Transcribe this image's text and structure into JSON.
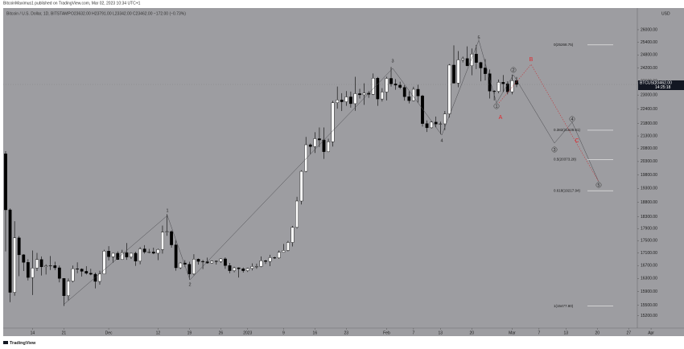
{
  "header": {
    "published": "BitcoinMaximus1 published on TradingView.com, Mar 02, 2023 10:34 UTC+1",
    "symbol": "Bitcoin / U.S. Dollar, 1D, BITSTAMP",
    "ohlc": "O23632.00 H23791.00 L23342.00 C23462.00 −172.00 (−0.73%)"
  },
  "chart_data": {
    "type": "candlestick",
    "currency": "USD",
    "open": [
      20600,
      18540,
      15880,
      17590,
      17040,
      16800,
      16330,
      16620,
      16890,
      16660,
      16690,
      16700,
      16630,
      16300,
      15780,
      16220,
      16600,
      16590,
      16520,
      16460,
      16430,
      16210,
      16440,
      17160,
      16980,
      17090,
      16890,
      17110,
      16970,
      17090,
      16840,
      17230,
      17130,
      17130,
      17090,
      17210,
      17780,
      17800,
      17360,
      16630,
      16780,
      16740,
      16440,
      16900,
      16830,
      16820,
      16780,
      16840,
      16830,
      16910,
      16700,
      16540,
      16630,
      16600,
      16540,
      16610,
      16670,
      16670,
      16850,
      16830,
      16950,
      16940,
      17120,
      17180,
      17440,
      17940,
      18850,
      19930,
      20950,
      20880,
      21190,
      21140,
      20680,
      21070,
      22670,
      22790,
      22710,
      22920,
      22630,
      23060,
      23010,
      23080,
      23030,
      23740,
      22830,
      23130,
      23730,
      23490,
      23430,
      23330,
      22930,
      22760,
      23250,
      22960,
      21800,
      21630,
      21860,
      21780,
      21790,
      22200,
      24330,
      23520,
      24570,
      24630,
      24300,
      24840,
      24450,
      24200,
      23940,
      23170,
      23160,
      23560,
      23490,
      23140,
      23632
    ],
    "high": [
      20700,
      18590,
      18150,
      17650,
      17060,
      16900,
      17180,
      17100,
      16990,
      16740,
      17000,
      16820,
      16700,
      16310,
      16300,
      16700,
      16800,
      16610,
      16680,
      16600,
      16480,
      16540,
      17200,
      17320,
      17100,
      17150,
      17200,
      17420,
      17100,
      17140,
      17290,
      17350,
      17230,
      17270,
      17240,
      18000,
      18390,
      17840,
      17530,
      16800,
      16870,
      16820,
      17060,
      16920,
      16880,
      16950,
      16860,
      16860,
      16930,
      16960,
      16780,
      16660,
      16640,
      16640,
      16630,
      16770,
      16760,
      16990,
      16880,
      17040,
      16980,
      17180,
      17390,
      17490,
      17990,
      19000,
      19970,
      21260,
      21000,
      21450,
      21640,
      21640,
      21190,
      22750,
      23370,
      23080,
      23170,
      23150,
      23800,
      23270,
      23510,
      23170,
      23950,
      23790,
      23300,
      23800,
      24240,
      23700,
      23580,
      23430,
      23160,
      23360,
      23450,
      23010,
      21930,
      21900,
      22090,
      21880,
      22320,
      24380,
      25250,
      24980,
      24720,
      25200,
      25100,
      25270,
      24480,
      24610,
      24130,
      23210,
      23680,
      23880,
      23600,
      23900,
      23791
    ],
    "low": [
      17150,
      15590,
      15780,
      16370,
      16530,
      16240,
      15800,
      16530,
      16390,
      16420,
      16560,
      16560,
      16180,
      15480,
      15640,
      16180,
      16460,
      16360,
      16420,
      16400,
      16000,
      16110,
      16440,
      16860,
      16790,
      16880,
      16880,
      16880,
      16910,
      16690,
      16740,
      17080,
      17090,
      17060,
      16870,
      17080,
      17660,
      17270,
      16540,
      16590,
      16660,
      16270,
      16400,
      16730,
      16590,
      16760,
      16760,
      16730,
      16780,
      16600,
      16460,
      16490,
      16330,
      16480,
      16500,
      16550,
      16600,
      16650,
      16750,
      16680,
      16910,
      16910,
      17110,
      17150,
      17310,
      17900,
      18730,
      19900,
      20580,
      20630,
      20860,
      20400,
      20660,
      20880,
      22420,
      22320,
      22540,
      22460,
      22330,
      22850,
      22580,
      22880,
      23000,
      22540,
      22720,
      22770,
      23370,
      23230,
      23260,
      22760,
      22640,
      22740,
      22680,
      21680,
      21460,
      21600,
      21640,
      21370,
      21530,
      22050,
      23500,
      23340,
      24450,
      24270,
      23870,
      24150,
      23600,
      23640,
      22850,
      22770,
      23080,
      23120,
      23030,
      23030,
      23342
    ],
    "close": [
      18540,
      15880,
      17590,
      17040,
      16800,
      16330,
      16620,
      16890,
      16660,
      16690,
      16700,
      16630,
      16300,
      15780,
      16220,
      16600,
      16590,
      16520,
      16460,
      16430,
      16210,
      16440,
      17160,
      16980,
      17090,
      16890,
      17110,
      16970,
      17090,
      16840,
      17230,
      17130,
      17130,
      17090,
      17210,
      17780,
      17800,
      17360,
      16630,
      16780,
      16740,
      16440,
      16900,
      16830,
      16820,
      16780,
      16840,
      16830,
      16910,
      16700,
      16540,
      16630,
      16600,
      16540,
      16610,
      16670,
      16670,
      16850,
      16830,
      16950,
      16940,
      17120,
      17180,
      17440,
      17940,
      18850,
      19930,
      20950,
      20880,
      21190,
      21140,
      20680,
      21070,
      22670,
      22790,
      22710,
      22920,
      22630,
      23060,
      23010,
      23080,
      23030,
      23740,
      22830,
      23130,
      23730,
      23490,
      23430,
      23330,
      22930,
      22760,
      23250,
      22960,
      21800,
      21630,
      21860,
      21780,
      21790,
      22200,
      24330,
      23520,
      24570,
      24630,
      24300,
      24840,
      24450,
      24200,
      23940,
      23170,
      23160,
      23560,
      23490,
      23140,
      23632,
      23462
    ],
    "ylim": [
      14850,
      27080
    ],
    "log_scale": true,
    "yticks": [
      {
        "value": 26000,
        "label": "26000.00"
      },
      {
        "value": 25400,
        "label": "25400.00"
      },
      {
        "value": 24800,
        "label": "24800.00"
      },
      {
        "value": 24200,
        "label": "24200.00"
      },
      {
        "value": 23600,
        "label": "23600.00"
      },
      {
        "value": 23000,
        "label": "23000.00"
      },
      {
        "value": 22400,
        "label": "22400.00"
      },
      {
        "value": 21800,
        "label": "21800.00"
      },
      {
        "value": 21300,
        "label": "21300.00"
      },
      {
        "value": 20800,
        "label": "20800.00"
      },
      {
        "value": 20300,
        "label": "20300.00"
      },
      {
        "value": 19800,
        "label": "19800.00"
      },
      {
        "value": 19300,
        "label": "19300.00"
      },
      {
        "value": 18800,
        "label": "18800.00"
      },
      {
        "value": 18300,
        "label": "18300.00"
      },
      {
        "value": 17900,
        "label": "17900.00"
      },
      {
        "value": 17500,
        "label": "17500.00"
      },
      {
        "value": 17100,
        "label": "17100.00"
      },
      {
        "value": 16700,
        "label": "16700.00"
      },
      {
        "value": 16300,
        "label": "16300.00"
      },
      {
        "value": 15900,
        "label": "15900.00"
      },
      {
        "value": 15500,
        "label": "15500.00"
      },
      {
        "value": 15200,
        "label": "15200.00"
      }
    ],
    "xticks": [
      {
        "value": 6,
        "label": "14"
      },
      {
        "value": 13,
        "label": "21"
      },
      {
        "value": 23,
        "label": "Dec"
      },
      {
        "value": 34,
        "label": "12"
      },
      {
        "value": 41,
        "label": "19"
      },
      {
        "value": 48,
        "label": "26"
      },
      {
        "value": 54,
        "label": "2023"
      },
      {
        "value": 62,
        "label": "9"
      },
      {
        "value": 69,
        "label": "16"
      },
      {
        "value": 76,
        "label": "23"
      },
      {
        "value": 85,
        "label": "Feb"
      },
      {
        "value": 91,
        "label": "7"
      },
      {
        "value": 97,
        "label": "13"
      },
      {
        "value": 104,
        "label": "20"
      },
      {
        "value": 113,
        "label": "Mar"
      },
      {
        "value": 119,
        "label": "7"
      },
      {
        "value": 125,
        "label": "13"
      },
      {
        "value": 132,
        "label": "20"
      },
      {
        "value": 139,
        "label": "27"
      },
      {
        "value": 144,
        "label": "Apr"
      }
    ],
    "up_color": "#ffffff",
    "down_color": "#000000",
    "price_tag": {
      "symbol": "BTCUSD",
      "price": "23462.00",
      "countdown": "14:25:18"
    },
    "fib_levels": [
      {
        "label": "0(25268.75)",
        "value": 25268.75
      },
      {
        "label": "0.382(21528.61)",
        "value": 21528.61
      },
      {
        "label": "0.5(20373.28)",
        "value": 20373.28
      },
      {
        "label": "0.618(19217.94)",
        "value": 19217.94
      },
      {
        "label": "1(15477.80)",
        "value": 15477.8
      }
    ],
    "wave_labels": [
      "1",
      "2",
      "3",
      "4",
      "5"
    ],
    "sub_wave_labels": [
      "1",
      "2",
      "3",
      "4",
      "5"
    ],
    "abc_labels": [
      "A",
      "B",
      "C"
    ]
  },
  "footer": "TradingView"
}
